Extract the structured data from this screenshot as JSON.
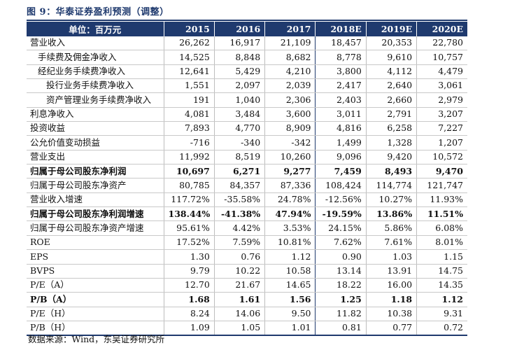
{
  "title": "图 9：华泰证券盈利预测（调整）",
  "source": "数据来源：Wind，东吴证券研究所",
  "table": {
    "header": {
      "label": "单位：百万元",
      "years": [
        "2015",
        "2016",
        "2017",
        "2018E",
        "2019E",
        "2020E"
      ]
    },
    "rows": [
      {
        "label": "营业收入",
        "values": [
          "26,262",
          "16,917",
          "21,109",
          "18,457",
          "20,353",
          "22,780"
        ]
      },
      {
        "label": "手续费及佣金净收入",
        "values": [
          "14,525",
          "8,848",
          "8,682",
          "8,778",
          "9,610",
          "10,757"
        ]
      },
      {
        "label": "经纪业务手续费净收入",
        "values": [
          "12,641",
          "5,429",
          "4,210",
          "3,800",
          "4,112",
          "4,479"
        ]
      },
      {
        "label": "投行业务手续费净收入",
        "values": [
          "1,551",
          "2,097",
          "2,039",
          "2,417",
          "2,640",
          "3,061"
        ]
      },
      {
        "label": "资产管理业务手续费净收入",
        "values": [
          "191",
          "1,040",
          "2,306",
          "2,403",
          "2,660",
          "2,979"
        ]
      },
      {
        "label": "利息净收入",
        "values": [
          "4,081",
          "3,484",
          "3,600",
          "3,011",
          "2,791",
          "3,207"
        ]
      },
      {
        "label": "投资收益",
        "values": [
          "7,893",
          "4,770",
          "8,909",
          "4,816",
          "6,258",
          "7,227"
        ]
      },
      {
        "label": "公允价值变动损益",
        "values": [
          "-716",
          "-340",
          "-342",
          "1,499",
          "1,328",
          "1,207"
        ]
      },
      {
        "label": "营业支出",
        "values": [
          "11,992",
          "8,519",
          "10,260",
          "9,096",
          "9,420",
          "10,572"
        ]
      },
      {
        "label": "归属于母公司股东净利润",
        "values": [
          "10,697",
          "6,271",
          "9,277",
          "7,459",
          "8,493",
          "9,470"
        ]
      },
      {
        "label": "归属于母公司股东净资产",
        "values": [
          "80,785",
          "84,357",
          "87,336",
          "108,424",
          "114,774",
          "121,747"
        ]
      },
      {
        "label": "营业收入增速",
        "values": [
          "117.72%",
          "-35.58%",
          "24.78%",
          "-12.56%",
          "10.27%",
          "11.93%"
        ]
      },
      {
        "label": "归属于母公司股东净利润增速",
        "values": [
          "138.44%",
          "-41.38%",
          "47.94%",
          "-19.59%",
          "13.86%",
          "11.51%"
        ]
      },
      {
        "label": "归属于母公司股东净资产增速",
        "values": [
          "95.61%",
          "4.42%",
          "3.53%",
          "24.15%",
          "5.86%",
          "6.08%"
        ]
      },
      {
        "label": "ROE",
        "values": [
          "17.52%",
          "7.59%",
          "10.81%",
          "7.62%",
          "7.61%",
          "8.01%"
        ]
      },
      {
        "label": "EPS",
        "values": [
          "1.30",
          "0.76",
          "1.12",
          "0.90",
          "1.03",
          "1.15"
        ]
      },
      {
        "label": "BVPS",
        "values": [
          "9.79",
          "10.22",
          "10.58",
          "13.14",
          "13.91",
          "14.75"
        ]
      },
      {
        "label": "P/E（A）",
        "values": [
          "12.70",
          "21.67",
          "14.65",
          "18.22",
          "16.00",
          "14.35"
        ]
      },
      {
        "label": "P/B（A）",
        "values": [
          "1.68",
          "1.61",
          "1.56",
          "1.25",
          "1.18",
          "1.12"
        ]
      },
      {
        "label": "P/E（H）",
        "values": [
          "8.24",
          "14.06",
          "9.50",
          "11.82",
          "10.38",
          "9.31"
        ]
      },
      {
        "label": "P/B（H）",
        "values": [
          "1.09",
          "1.05",
          "1.01",
          "0.81",
          "0.77",
          "0.72"
        ]
      }
    ]
  }
}
